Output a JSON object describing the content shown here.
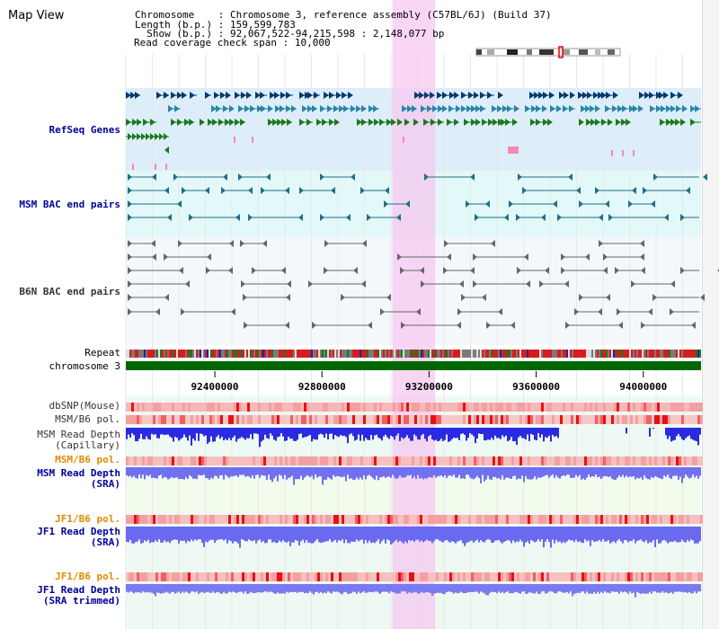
{
  "title": "Map View",
  "header": {
    "chromosome_key": "Chromosome",
    "chromosome_val": "Chromosome 3, reference assembly (C57BL/6J) (Build 37)",
    "length_key": "Length (b.p.)",
    "length_val": "159,599,783",
    "show_key": "Show (b.p.)",
    "show_val": "92,067,522-94,215,598 : 2,148,077 bp",
    "coverage_key": "Read coverage check span",
    "coverage_val": "10,000"
  },
  "tracks": {
    "refseq": "RefSeq Genes",
    "msm_bac": "MSM BAC end pairs",
    "b6n_bac": "B6N BAC end pairs",
    "repeat": "Repeat",
    "chromosome": "chromosome 3",
    "dbsnp": "dbSNP(Mouse)",
    "msm_b6_pol": "MSM/B6 pol.",
    "msm_depth_cap_1": "MSM Read Depth",
    "msm_depth_cap_2": "(Capillary)",
    "msm_b6_pol_2": "MSM/B6 pol.",
    "msm_depth_sra_1": "MSM Read Depth",
    "msm_depth_sra_2": "(SRA)",
    "jf1_pol_1": "JF1/B6 pol.",
    "jf1_depth_sra_1": "JF1 Read Depth",
    "jf1_depth_sra_2": "(SRA)",
    "jf1_pol_2": "JF1/B6 pol.",
    "jf1_depth_trim_1": "JF1 Read Depth",
    "jf1_depth_trim_2": "(SRA trimmed)"
  },
  "axis": {
    "ticks": [
      "92400000",
      "92800000",
      "93200000",
      "93600000",
      "94000000"
    ],
    "tick_values": [
      92400000,
      92800000,
      93200000,
      93600000,
      94000000
    ],
    "range": [
      92067522,
      94215598
    ]
  },
  "highlight_range": [
    93063000,
    93223000
  ],
  "colors": {
    "highlight": "#f5c8f0",
    "refseq_bg": "#ddeefa",
    "bac_bg": "#e3f8f8",
    "chromosome": "#006600",
    "label_blue": "#000099",
    "label_orange": "#e08a00",
    "depth_red": "#2a2ae0",
    "depth_sra": "#7070f0"
  }
}
